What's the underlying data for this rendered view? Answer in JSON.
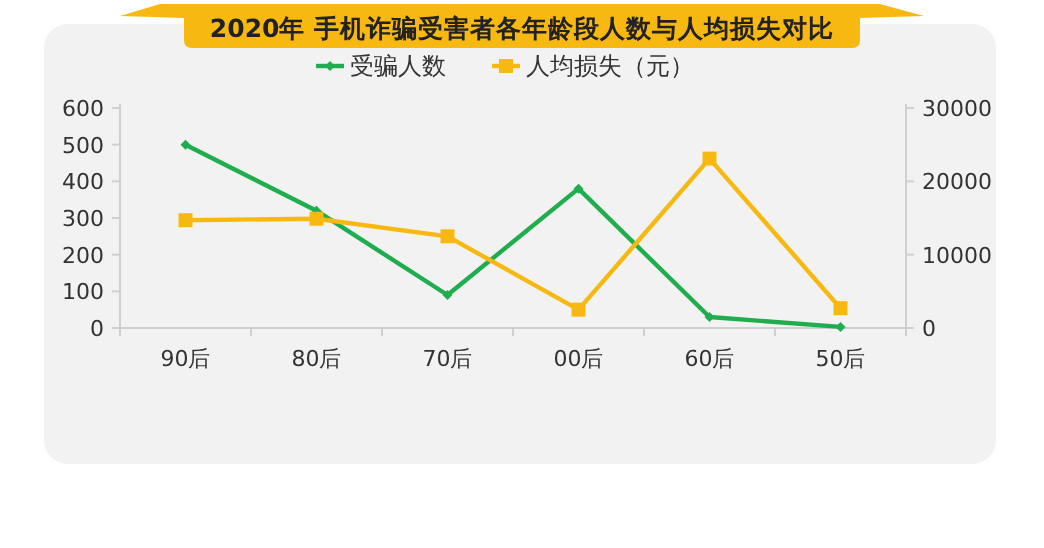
{
  "chart_data": {
    "type": "line",
    "title": "2020年 手机诈骗受害者各年龄段人数与人均损失对比",
    "categories": [
      "90后",
      "80后",
      "70后",
      "00后",
      "60后",
      "50后"
    ],
    "series": [
      {
        "name": "受骗人数",
        "color": "#1fad4e",
        "marker": "diamond",
        "values": [
          500,
          320,
          90,
          380,
          30,
          3
        ]
      },
      {
        "name": "人均损失（元）",
        "color": "#f7b911",
        "marker": "square",
        "axis": "y2",
        "values": [
          14700,
          14900,
          12500,
          2500,
          23100,
          2700
        ]
      }
    ],
    "ylim": [
      0,
      600
    ],
    "yticks": [
      0,
      100,
      200,
      300,
      400,
      500,
      600
    ],
    "y2lim": [
      0,
      30000
    ],
    "y2ticks": [
      0,
      10000,
      20000,
      30000
    ],
    "grid": false,
    "legend": "top"
  }
}
